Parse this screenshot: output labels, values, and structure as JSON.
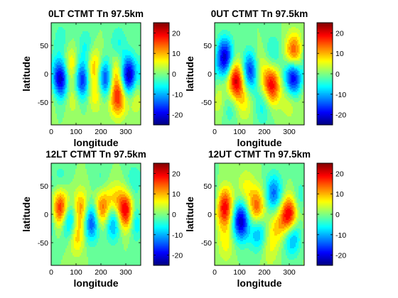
{
  "chart_data": [
    {
      "type": "heatmap",
      "title": "0LT CTMT Tn 97.5km",
      "xlabel": "longitude",
      "ylabel": "latitude",
      "xlim": [
        0,
        360
      ],
      "ylim": [
        -90,
        90
      ],
      "xticks": [
        "0",
        "100",
        "200",
        "300"
      ],
      "yticks": [
        "50",
        "0",
        "-50"
      ],
      "color_range": [
        -25,
        25
      ],
      "colorbar_ticks": [
        "20",
        "10",
        "0",
        "-10",
        "-20"
      ],
      "blobs": [
        {
          "lon": 40,
          "lat": -8,
          "value": -24
        },
        {
          "lon": 122,
          "lat": -12,
          "value": -20
        },
        {
          "lon": 215,
          "lat": -8,
          "value": -20
        },
        {
          "lon": 310,
          "lat": -5,
          "value": -25
        },
        {
          "lon": 78,
          "lat": 10,
          "value": 12
        },
        {
          "lon": 175,
          "lat": 12,
          "value": 12
        },
        {
          "lon": 262,
          "lat": 5,
          "value": 10
        },
        {
          "lon": 268,
          "lat": -40,
          "value": 18
        },
        {
          "lon": 180,
          "lat": -32,
          "value": 9
        },
        {
          "lon": 90,
          "lat": -35,
          "value": 7
        },
        {
          "lon": 340,
          "lat": -35,
          "value": 7
        },
        {
          "lon": 140,
          "lat": 45,
          "value": -6
        },
        {
          "lon": 270,
          "lat": 50,
          "value": -6
        },
        {
          "lon": 40,
          "lat": 60,
          "value": -4
        }
      ]
    },
    {
      "type": "heatmap",
      "title": "0UT CTMT Tn 97.5km",
      "xlabel": "longitude",
      "ylabel": "latitude",
      "xlim": [
        0,
        360
      ],
      "ylim": [
        -90,
        90
      ],
      "xticks": [
        "0",
        "100",
        "200",
        "300"
      ],
      "yticks": [
        "50",
        "0",
        "-50"
      ],
      "color_range": [
        -25,
        25
      ],
      "colorbar_ticks": [
        "20",
        "10",
        "0",
        "-10",
        "-20"
      ],
      "blobs": [
        {
          "lon": 40,
          "lat": 28,
          "value": -22
        },
        {
          "lon": 85,
          "lat": -12,
          "value": 22
        },
        {
          "lon": 145,
          "lat": 5,
          "value": -20
        },
        {
          "lon": 175,
          "lat": 10,
          "value": 8
        },
        {
          "lon": 228,
          "lat": -20,
          "value": 20
        },
        {
          "lon": 315,
          "lat": -5,
          "value": -24
        },
        {
          "lon": 318,
          "lat": 35,
          "value": 18
        },
        {
          "lon": 235,
          "lat": 35,
          "value": -6
        },
        {
          "lon": 120,
          "lat": -50,
          "value": 6
        },
        {
          "lon": 60,
          "lat": -55,
          "value": -6
        },
        {
          "lon": 195,
          "lat": -55,
          "value": -7
        },
        {
          "lon": 300,
          "lat": -45,
          "value": 6
        },
        {
          "lon": 20,
          "lat": -45,
          "value": 5
        }
      ]
    },
    {
      "type": "heatmap",
      "title": "12LT CTMT Tn 97.5km",
      "xlabel": "longitude",
      "ylabel": "latitude",
      "xlim": [
        0,
        360
      ],
      "ylim": [
        -90,
        90
      ],
      "xticks": [
        "0",
        "100",
        "200",
        "300"
      ],
      "yticks": [
        "50",
        "0",
        "-50"
      ],
      "color_range": [
        -25,
        25
      ],
      "colorbar_ticks": [
        "20",
        "10",
        "0",
        "-10",
        "-20"
      ],
      "blobs": [
        {
          "lon": 40,
          "lat": 10,
          "value": 20
        },
        {
          "lon": 75,
          "lat": -12,
          "value": -18
        },
        {
          "lon": 120,
          "lat": 8,
          "value": 14
        },
        {
          "lon": 160,
          "lat": -12,
          "value": -18
        },
        {
          "lon": 205,
          "lat": 10,
          "value": 16
        },
        {
          "lon": 250,
          "lat": -10,
          "value": -16
        },
        {
          "lon": 300,
          "lat": 5,
          "value": 22
        },
        {
          "lon": 340,
          "lat": -10,
          "value": -10
        },
        {
          "lon": 100,
          "lat": -35,
          "value": 12
        },
        {
          "lon": 255,
          "lat": 20,
          "value": 10
        },
        {
          "lon": 330,
          "lat": 55,
          "value": -5
        },
        {
          "lon": 200,
          "lat": 55,
          "value": -4
        },
        {
          "lon": 40,
          "lat": 60,
          "value": -4
        }
      ]
    },
    {
      "type": "heatmap",
      "title": "12UT CTMT Tn 97.5km",
      "xlabel": "longitude",
      "ylabel": "latitude",
      "xlim": [
        0,
        360
      ],
      "ylim": [
        -90,
        90
      ],
      "xticks": [
        "0",
        "100",
        "200",
        "300"
      ],
      "yticks": [
        "50",
        "0",
        "-50"
      ],
      "color_range": [
        -25,
        25
      ],
      "colorbar_ticks": [
        "20",
        "10",
        "0",
        "-10",
        "-20"
      ],
      "blobs": [
        {
          "lon": 40,
          "lat": 12,
          "value": 20
        },
        {
          "lon": 105,
          "lat": -12,
          "value": -22
        },
        {
          "lon": 170,
          "lat": 10,
          "value": 16
        },
        {
          "lon": 175,
          "lat": -30,
          "value": -12
        },
        {
          "lon": 238,
          "lat": 35,
          "value": -14
        },
        {
          "lon": 300,
          "lat": -5,
          "value": 25
        },
        {
          "lon": 310,
          "lat": -35,
          "value": -16
        },
        {
          "lon": 250,
          "lat": -18,
          "value": 8
        },
        {
          "lon": 125,
          "lat": 45,
          "value": 6
        },
        {
          "lon": 45,
          "lat": -50,
          "value": 6
        },
        {
          "lon": 350,
          "lat": 25,
          "value": -6
        },
        {
          "lon": 220,
          "lat": -60,
          "value": 5
        }
      ]
    }
  ]
}
